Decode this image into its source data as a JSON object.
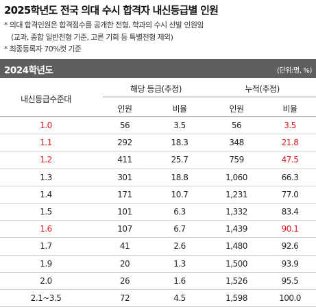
{
  "title": "2025학년도 전국 의대 수시 합격자 내신등급별 인원",
  "notes": [
    "* 의대 합격인원은 합격점수를 공개한 전형, 학과의 수시 선발 인원임",
    "(교과, 종합 일반전형 기준, 고른 기회 등 특별전형 제외)",
    "* 최종등록자 70%컷 기준"
  ],
  "table": {
    "year_label": "2024학년도",
    "unit_label": "(단위:명, %)",
    "band_header": "내신등급수준대",
    "group_headers": [
      "해당 등급(추정)",
      "누적(추정)"
    ],
    "sub_headers": [
      "인원",
      "비율",
      "인원",
      "비율"
    ],
    "highlight_color": "#e21a22",
    "rows": [
      {
        "band": "1.0",
        "count": "56",
        "ratio": "3.5",
        "cum_count": "56",
        "cum_ratio": "3.5",
        "highlight": true
      },
      {
        "band": "1.1",
        "count": "292",
        "ratio": "18.3",
        "cum_count": "348",
        "cum_ratio": "21.8",
        "highlight": true
      },
      {
        "band": "1.2",
        "count": "411",
        "ratio": "25.7",
        "cum_count": "759",
        "cum_ratio": "47.5",
        "highlight": true
      },
      {
        "band": "1.3",
        "count": "301",
        "ratio": "18.8",
        "cum_count": "1,060",
        "cum_ratio": "66.3",
        "highlight": false
      },
      {
        "band": "1.4",
        "count": "171",
        "ratio": "10.7",
        "cum_count": "1,231",
        "cum_ratio": "77.0",
        "highlight": false
      },
      {
        "band": "1.5",
        "count": "101",
        "ratio": "6.3",
        "cum_count": "1,332",
        "cum_ratio": "83.4",
        "highlight": false
      },
      {
        "band": "1.6",
        "count": "107",
        "ratio": "6.7",
        "cum_count": "1,439",
        "cum_ratio": "90.1",
        "highlight": true
      },
      {
        "band": "1.7",
        "count": "41",
        "ratio": "2.6",
        "cum_count": "1,480",
        "cum_ratio": "92.6",
        "highlight": false
      },
      {
        "band": "1.9",
        "count": "20",
        "ratio": "1.3",
        "cum_count": "1,500",
        "cum_ratio": "93.9",
        "highlight": false
      },
      {
        "band": "2.0",
        "count": "26",
        "ratio": "1.6",
        "cum_count": "1,526",
        "cum_ratio": "95.5",
        "highlight": false
      },
      {
        "band": "2.1~3.5",
        "count": "72",
        "ratio": "4.5",
        "cum_count": "1,598",
        "cum_ratio": "100.0",
        "highlight": false
      }
    ]
  }
}
